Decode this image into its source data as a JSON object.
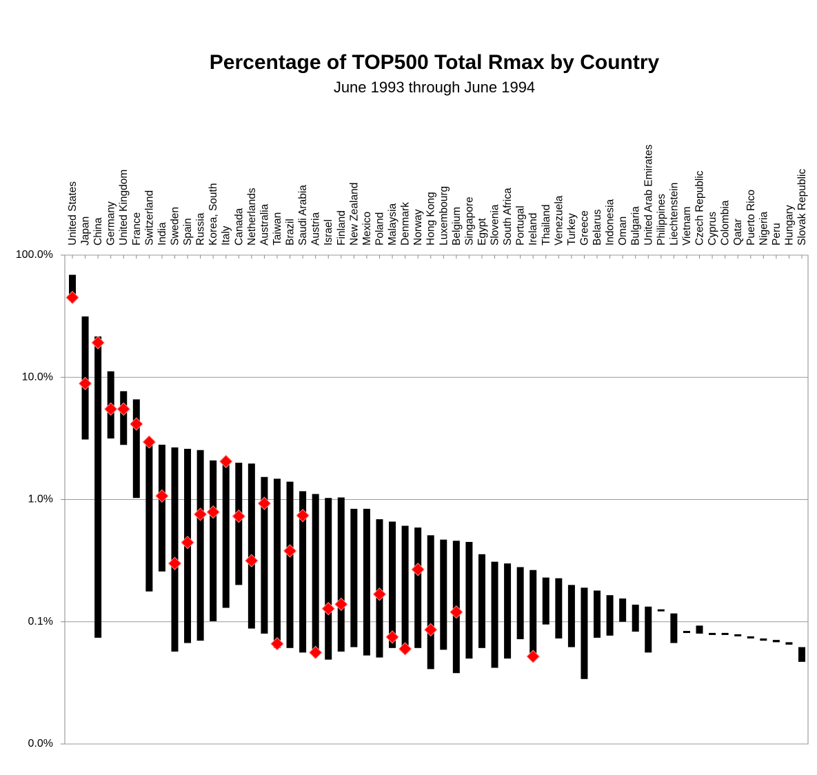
{
  "chart_data": {
    "type": "range_bar",
    "title": "Percentage of TOP500 Total Rmax by Country",
    "subtitle": "June 1993 through June 1994",
    "categories": [
      "United States",
      "Japan",
      "China",
      "Germany",
      "United Kingdom",
      "France",
      "Switzerland",
      "India",
      "Sweden",
      "Spain",
      "Russia",
      "Korea, South",
      "Italy",
      "Canada",
      "Netherlands",
      "Australia",
      "Taiwan",
      "Brazil",
      "Saudi Arabia",
      "Austria",
      "Israel",
      "Finland",
      "New Zealand",
      "Mexico",
      "Poland",
      "Malaysia",
      "Denmark",
      "Norway",
      "Hong Kong",
      "Luxembourg",
      "Belgium",
      "Singapore",
      "Egypt",
      "Slovenia",
      "South Africa",
      "Portugal",
      "Ireland",
      "Thailand",
      "Venezuela",
      "Turkey",
      "Greece",
      "Belarus",
      "Indonesia",
      "Oman",
      "Bulgaria",
      "United Arab Emirates",
      "Philippines",
      "Liechtenstein",
      "Vietnam",
      "Czech Republic",
      "Cyprus",
      "Colombia",
      "Qatar",
      "Puerto Rico",
      "Nigeria",
      "Peru",
      "Hungary",
      "Slovak Republic"
    ],
    "highs": [
      69,
      31.5,
      21.6,
      11.2,
      7.7,
      6.6,
      3.1,
      2.81,
      2.67,
      2.6,
      2.54,
      2.09,
      2.05,
      2.0,
      1.97,
      1.53,
      1.48,
      1.4,
      1.17,
      1.11,
      1.03,
      1.04,
      0.84,
      0.84,
      0.69,
      0.66,
      0.61,
      0.59,
      0.51,
      0.47,
      0.46,
      0.45,
      0.357,
      0.31,
      0.3,
      0.28,
      0.265,
      0.23,
      0.227,
      0.2,
      0.19,
      0.18,
      0.165,
      0.155,
      0.138,
      0.133,
      0.126,
      0.117,
      0.084,
      0.093,
      0.081,
      0.081,
      0.079,
      0.076,
      0.073,
      0.071,
      0.068,
      0.062
    ],
    "lows": [
      43,
      3.1,
      0.074,
      3.16,
      2.8,
      1.03,
      0.177,
      0.258,
      0.057,
      0.067,
      0.07,
      0.101,
      0.13,
      0.2,
      0.088,
      0.08,
      0.061,
      0.061,
      0.056,
      0.056,
      0.049,
      0.057,
      0.062,
      0.053,
      0.051,
      0.061,
      0.057,
      0.061,
      0.041,
      0.059,
      0.038,
      0.05,
      0.061,
      0.042,
      0.05,
      0.072,
      0.052,
      0.095,
      0.073,
      0.062,
      0.034,
      0.074,
      0.077,
      0.1,
      0.083,
      0.056,
      0.122,
      0.067,
      0.081,
      0.08,
      0.078,
      0.078,
      0.076,
      0.073,
      0.07,
      0.068,
      0.065,
      0.047
    ],
    "markers": [
      45,
      8.9,
      19.2,
      5.5,
      5.5,
      4.15,
      2.96,
      1.07,
      0.3,
      0.445,
      0.757,
      0.79,
      2.05,
      0.73,
      0.316,
      0.93,
      0.066,
      0.38,
      0.74,
      0.056,
      0.128,
      0.139,
      null,
      null,
      0.168,
      0.075,
      0.06,
      0.268,
      0.086,
      null,
      0.12,
      null,
      null,
      null,
      null,
      null,
      0.052,
      null,
      null,
      null,
      null,
      null,
      null,
      null,
      null,
      null,
      null,
      null,
      null,
      null,
      null,
      null,
      null,
      null,
      null,
      null,
      null,
      null
    ],
    "bar_color": "#000000",
    "marker_color": "#ff0000",
    "log_scale": true,
    "grid": true,
    "ylim": [
      0.01,
      100
    ],
    "yticks": [
      {
        "value": 100,
        "label": "100.0%"
      },
      {
        "value": 10,
        "label": "10.0%"
      },
      {
        "value": 1,
        "label": "1.0%"
      },
      {
        "value": 0.1,
        "label": "0.1%"
      },
      {
        "value": 0.01,
        "label": "0.0%"
      }
    ]
  }
}
